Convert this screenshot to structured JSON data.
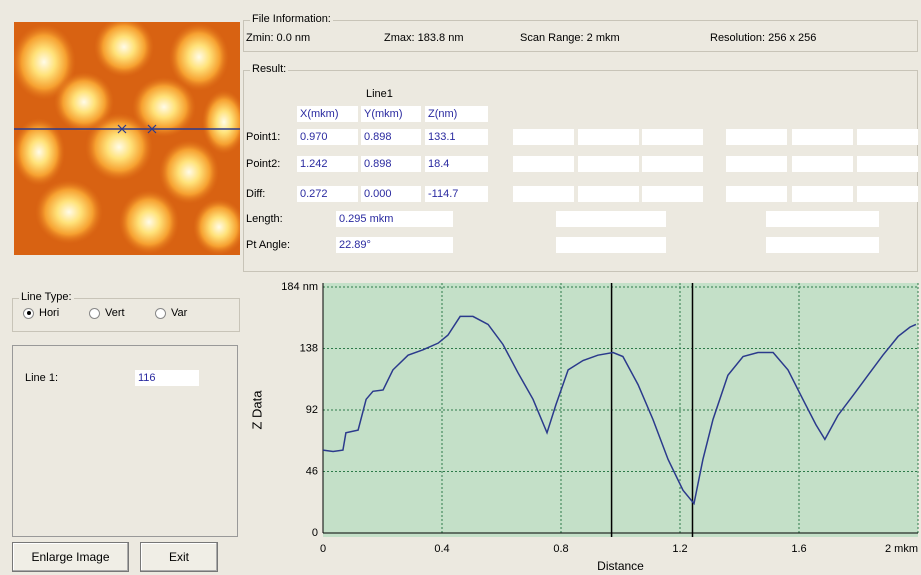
{
  "file_information": {
    "title": "File Information:",
    "items": [
      "Zmin: 0.0 nm",
      "Zmax: 183.8 nm",
      "Scan Range: 2 mkm",
      "Resolution: 256 x 256"
    ]
  },
  "result": {
    "title": "Result:",
    "line_header": "Line1",
    "columns": [
      "X(mkm)",
      "Y(mkm)",
      "Z(nm)"
    ],
    "rows": [
      {
        "label": "Point1:",
        "values": [
          "0.970",
          "0.898",
          "133.1"
        ]
      },
      {
        "label": "Point2:",
        "values": [
          "1.242",
          "0.898",
          "18.4"
        ]
      },
      {
        "label": "Diff:",
        "values": [
          "0.272",
          "0.000",
          "-114.7"
        ]
      }
    ],
    "length": {
      "label": "Length:",
      "value": "0.295 mkm"
    },
    "angle": {
      "label": "Pt Angle:",
      "value": "22.89°"
    }
  },
  "line_type": {
    "title": "Line Type:",
    "options": [
      "Hori",
      "Vert",
      "Var"
    ],
    "selected": 0
  },
  "line_input": {
    "label": "Line 1:",
    "value": "116"
  },
  "buttons": [
    "Enlarge Image",
    "Exit"
  ],
  "chart_data": {
    "type": "line",
    "xlabel": "Distance",
    "ylabel": "Z Data",
    "x": [
      0.0,
      0.034,
      0.067,
      0.077,
      0.118,
      0.145,
      0.168,
      0.202,
      0.235,
      0.286,
      0.336,
      0.387,
      0.42,
      0.461,
      0.504,
      0.555,
      0.605,
      0.655,
      0.706,
      0.753,
      0.783,
      0.824,
      0.874,
      0.924,
      0.975,
      1.008,
      1.059,
      1.109,
      1.16,
      1.21,
      1.247,
      1.277,
      1.311,
      1.361,
      1.412,
      1.462,
      1.513,
      1.563,
      1.613,
      1.657,
      1.687,
      1.731,
      1.782,
      1.832,
      1.882,
      1.933,
      1.973,
      1.993
    ],
    "series": [
      {
        "color": "#2b3a8c",
        "values": [
          62,
          61,
          62,
          75,
          77,
          100,
          106,
          107,
          122,
          133,
          137,
          142,
          148,
          162,
          162,
          156,
          141,
          120,
          100,
          75,
          96,
          122,
          129,
          133,
          135,
          132,
          111,
          85,
          55,
          32,
          22,
          55,
          85,
          118,
          132,
          135,
          135,
          122,
          100,
          81,
          70,
          88,
          103,
          118,
          133,
          147,
          154,
          156
        ]
      }
    ],
    "xlim": [
      0,
      2
    ],
    "ylim": [
      0,
      184
    ],
    "xticks": [
      0,
      0.4,
      0.8,
      1.2,
      1.6,
      {
        "value": 2,
        "label": "2 mkm"
      }
    ],
    "yticks": [
      0,
      46,
      92,
      138,
      {
        "value": 184,
        "label": "184 nm"
      }
    ],
    "grid": true,
    "background": "#c4e0c8"
  }
}
